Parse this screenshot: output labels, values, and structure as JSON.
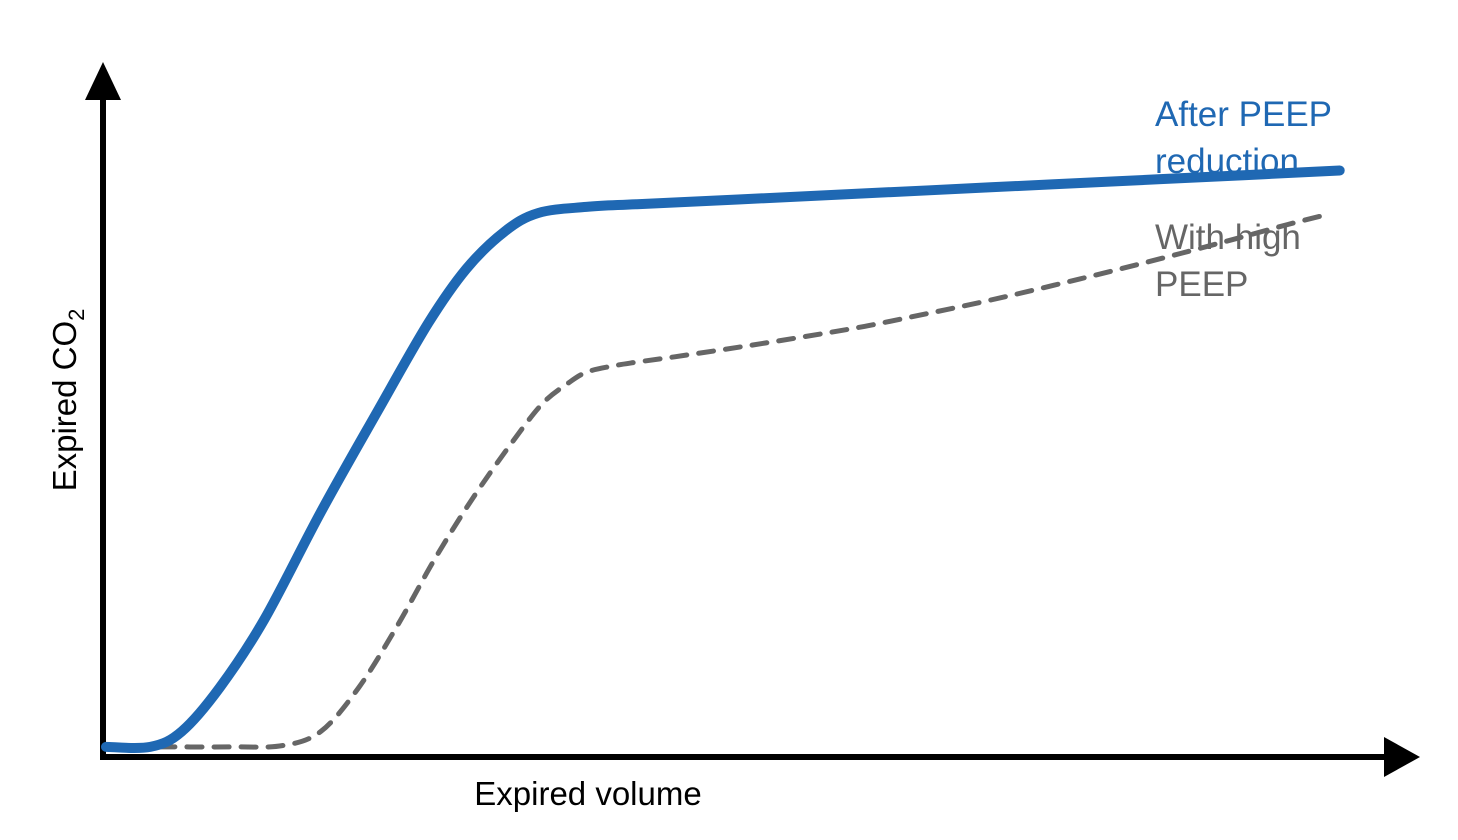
{
  "chart_data": {
    "type": "line",
    "title": "",
    "xlabel": "Expired volume",
    "ylabel_main": "Expired CO",
    "ylabel_subscript": "2",
    "xlim": [
      0,
      100
    ],
    "ylim": [
      0,
      100
    ],
    "grid": false,
    "legend": "right",
    "series": [
      {
        "name_lines": [
          "After PEEP",
          "reduction"
        ],
        "color": "#1f68b3",
        "style": "solid",
        "x": [
          0,
          3.5,
          6,
          9,
          12.5,
          17,
          21.5,
          25.5,
          28.5,
          31.5,
          34.2,
          38,
          42,
          50,
          60,
          70,
          80,
          90,
          97.6
        ],
        "y": [
          1.2,
          1.2,
          3.5,
          10,
          20,
          36,
          51,
          64,
          72,
          77.5,
          80.3,
          81.2,
          81.6,
          82.3,
          83.2,
          84.1,
          85,
          85.9,
          86.6
        ]
      },
      {
        "name_lines": [
          "With high",
          "PEEP"
        ],
        "color": "#666666",
        "style": "dashed",
        "x": [
          0,
          5,
          10,
          14,
          17,
          20,
          23,
          26,
          29,
          32,
          34.5,
          36.5,
          38,
          40,
          42,
          45,
          50,
          55,
          60,
          65,
          70,
          75,
          80,
          85,
          90,
          93.5,
          96.9
        ],
        "y": [
          1.2,
          1.2,
          1.2,
          1.4,
          3.5,
          10,
          19,
          29,
          38,
          46,
          52,
          55,
          56.7,
          57.6,
          58.2,
          59,
          60.4,
          61.9,
          63.5,
          65.4,
          67.4,
          69.6,
          71.9,
          74.3,
          76.8,
          78.6,
          80.2
        ]
      }
    ]
  }
}
